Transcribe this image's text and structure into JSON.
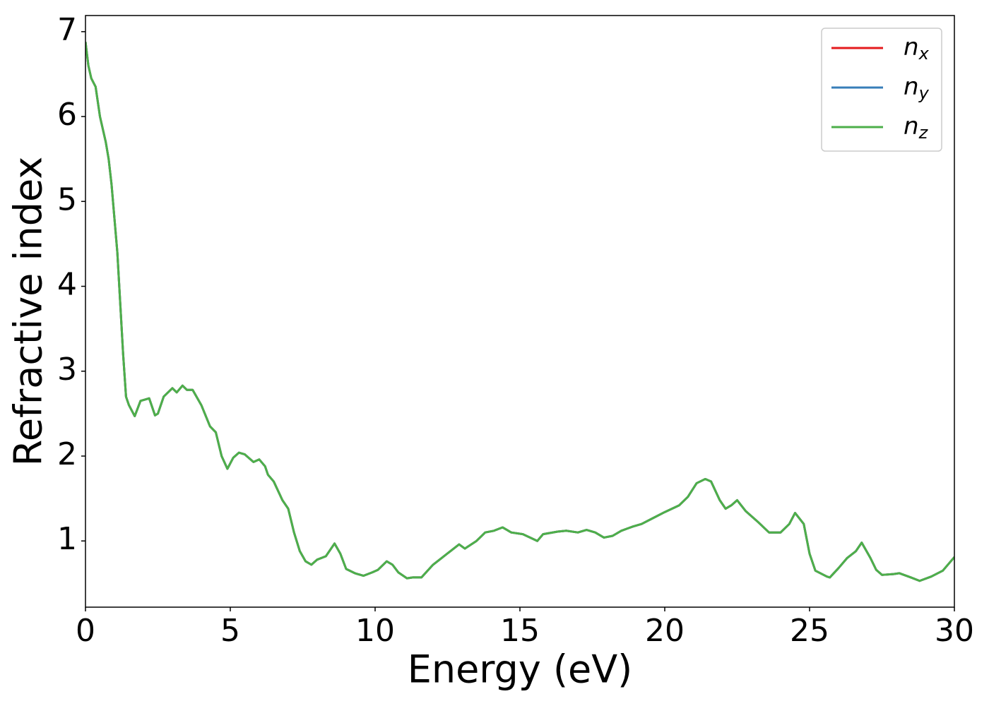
{
  "chart_data": {
    "type": "line",
    "xlabel": "Energy (eV)",
    "ylabel": "Refractive index",
    "xlim": [
      0,
      30
    ],
    "ylim": [
      0.22,
      7.19
    ],
    "xticks": [
      0,
      5,
      10,
      15,
      20,
      25,
      30
    ],
    "yticks": [
      1,
      2,
      3,
      4,
      5,
      6,
      7
    ],
    "legend": "upper right",
    "x": [
      0,
      0.1,
      0.2,
      0.35,
      0.5,
      0.7,
      0.8,
      0.9,
      1.0,
      1.1,
      1.2,
      1.3,
      1.4,
      1.5,
      1.7,
      1.9,
      2.1,
      2.2,
      2.4,
      2.5,
      2.7,
      3.0,
      3.15,
      3.35,
      3.5,
      3.7,
      4.0,
      4.3,
      4.5,
      4.7,
      4.9,
      5.1,
      5.3,
      5.5,
      5.8,
      6.0,
      6.2,
      6.3,
      6.5,
      6.8,
      7.0,
      7.2,
      7.4,
      7.6,
      7.8,
      8.0,
      8.3,
      8.6,
      8.8,
      9.0,
      9.3,
      9.6,
      9.9,
      10.1,
      10.4,
      10.6,
      10.8,
      11.1,
      11.3,
      11.6,
      12.0,
      12.3,
      12.6,
      12.9,
      13.1,
      13.5,
      13.8,
      14.1,
      14.4,
      14.7,
      15.1,
      15.6,
      15.8,
      16.3,
      16.6,
      17.0,
      17.3,
      17.6,
      17.9,
      18.2,
      18.5,
      18.9,
      19.2,
      19.6,
      20.0,
      20.5,
      20.8,
      21.1,
      21.4,
      21.6,
      21.9,
      22.1,
      22.3,
      22.5,
      22.8,
      23.2,
      23.6,
      24.0,
      24.3,
      24.5,
      24.8,
      25.0,
      25.2,
      25.6,
      25.7,
      26.0,
      26.3,
      26.6,
      26.8,
      27.1,
      27.3,
      27.5,
      27.9,
      28.1,
      28.5,
      28.8,
      29.2,
      29.6,
      30.0
    ],
    "series": [
      {
        "name": "n_x",
        "color": "#e41a1c",
        "values": [
          6.88,
          6.6,
          6.45,
          6.35,
          6.0,
          5.7,
          5.5,
          5.2,
          4.8,
          4.4,
          3.8,
          3.2,
          2.7,
          2.6,
          2.47,
          2.65,
          2.67,
          2.68,
          2.48,
          2.5,
          2.7,
          2.8,
          2.75,
          2.83,
          2.78,
          2.78,
          2.6,
          2.35,
          2.28,
          2.0,
          1.85,
          1.98,
          2.04,
          2.02,
          1.93,
          1.96,
          1.88,
          1.78,
          1.7,
          1.48,
          1.38,
          1.1,
          0.88,
          0.76,
          0.72,
          0.78,
          0.82,
          0.97,
          0.85,
          0.67,
          0.62,
          0.59,
          0.63,
          0.66,
          0.76,
          0.72,
          0.63,
          0.56,
          0.57,
          0.57,
          0.72,
          0.8,
          0.88,
          0.96,
          0.91,
          1.0,
          1.1,
          1.12,
          1.16,
          1.1,
          1.08,
          1.0,
          1.08,
          1.11,
          1.12,
          1.1,
          1.13,
          1.1,
          1.04,
          1.06,
          1.12,
          1.17,
          1.2,
          1.27,
          1.34,
          1.42,
          1.52,
          1.68,
          1.73,
          1.7,
          1.48,
          1.38,
          1.42,
          1.48,
          1.35,
          1.23,
          1.1,
          1.1,
          1.2,
          1.33,
          1.2,
          0.85,
          0.65,
          0.58,
          0.57,
          0.68,
          0.8,
          0.88,
          0.98,
          0.8,
          0.66,
          0.6,
          0.61,
          0.62,
          0.57,
          0.53,
          0.58,
          0.65,
          0.81
        ]
      },
      {
        "name": "n_y",
        "color": "#377eb8",
        "values": [
          6.88,
          6.6,
          6.45,
          6.35,
          6.0,
          5.7,
          5.5,
          5.2,
          4.8,
          4.4,
          3.8,
          3.2,
          2.7,
          2.6,
          2.47,
          2.65,
          2.67,
          2.68,
          2.48,
          2.5,
          2.7,
          2.8,
          2.75,
          2.83,
          2.78,
          2.78,
          2.6,
          2.35,
          2.28,
          2.0,
          1.85,
          1.98,
          2.04,
          2.02,
          1.93,
          1.96,
          1.88,
          1.78,
          1.7,
          1.48,
          1.38,
          1.1,
          0.88,
          0.76,
          0.72,
          0.78,
          0.82,
          0.97,
          0.85,
          0.67,
          0.62,
          0.59,
          0.63,
          0.66,
          0.76,
          0.72,
          0.63,
          0.56,
          0.57,
          0.57,
          0.72,
          0.8,
          0.88,
          0.96,
          0.91,
          1.0,
          1.1,
          1.12,
          1.16,
          1.1,
          1.08,
          1.0,
          1.08,
          1.11,
          1.12,
          1.1,
          1.13,
          1.1,
          1.04,
          1.06,
          1.12,
          1.17,
          1.2,
          1.27,
          1.34,
          1.42,
          1.52,
          1.68,
          1.73,
          1.7,
          1.48,
          1.38,
          1.42,
          1.48,
          1.35,
          1.23,
          1.1,
          1.1,
          1.2,
          1.33,
          1.2,
          0.85,
          0.65,
          0.58,
          0.57,
          0.68,
          0.8,
          0.88,
          0.98,
          0.8,
          0.66,
          0.6,
          0.61,
          0.62,
          0.57,
          0.53,
          0.58,
          0.65,
          0.81
        ]
      },
      {
        "name": "n_z",
        "color": "#4daf4a",
        "values": [
          6.88,
          6.6,
          6.45,
          6.35,
          6.0,
          5.7,
          5.5,
          5.2,
          4.8,
          4.4,
          3.8,
          3.2,
          2.7,
          2.6,
          2.47,
          2.65,
          2.67,
          2.68,
          2.48,
          2.5,
          2.7,
          2.8,
          2.75,
          2.83,
          2.78,
          2.78,
          2.6,
          2.35,
          2.28,
          2.0,
          1.85,
          1.98,
          2.04,
          2.02,
          1.93,
          1.96,
          1.88,
          1.78,
          1.7,
          1.48,
          1.38,
          1.1,
          0.88,
          0.76,
          0.72,
          0.78,
          0.82,
          0.97,
          0.85,
          0.67,
          0.62,
          0.59,
          0.63,
          0.66,
          0.76,
          0.72,
          0.63,
          0.56,
          0.57,
          0.57,
          0.72,
          0.8,
          0.88,
          0.96,
          0.91,
          1.0,
          1.1,
          1.12,
          1.16,
          1.1,
          1.08,
          1.0,
          1.08,
          1.11,
          1.12,
          1.1,
          1.13,
          1.1,
          1.04,
          1.06,
          1.12,
          1.17,
          1.2,
          1.27,
          1.34,
          1.42,
          1.52,
          1.68,
          1.73,
          1.7,
          1.48,
          1.38,
          1.42,
          1.48,
          1.35,
          1.23,
          1.1,
          1.1,
          1.2,
          1.33,
          1.2,
          0.85,
          0.65,
          0.58,
          0.57,
          0.68,
          0.8,
          0.88,
          0.98,
          0.8,
          0.66,
          0.6,
          0.61,
          0.62,
          0.57,
          0.53,
          0.58,
          0.65,
          0.81
        ]
      }
    ]
  }
}
